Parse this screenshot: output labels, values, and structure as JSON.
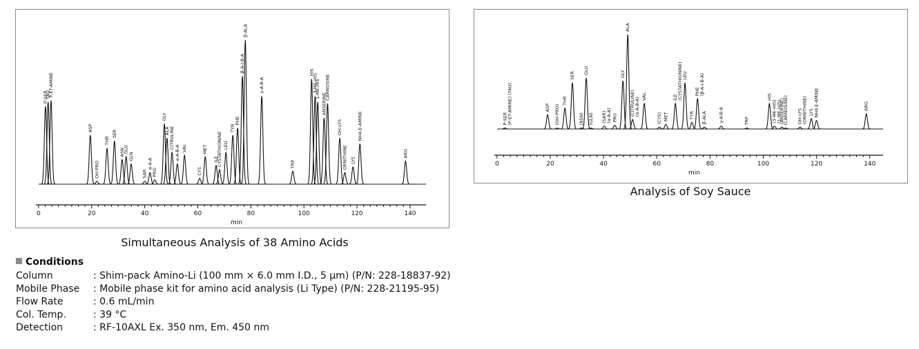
{
  "chart_data": [
    {
      "type": "chromatogram",
      "title": "Simultaneous Analysis of 38 Amino Acids",
      "x_label": "min",
      "color": "#111111",
      "xlim": [
        -1,
        146
      ],
      "xticks": [
        0,
        20,
        40,
        60,
        80,
        100,
        120,
        140
      ],
      "ylim": [
        0,
        100
      ],
      "peaks": [
        {
          "label": [
            "P-SER"
          ],
          "x": 2.6,
          "height": 54
        },
        {
          "label": [
            "TAU"
          ],
          "x": 3.6,
          "height": 57
        },
        {
          "label": [
            "P-ET-AMINE"
          ],
          "x": 4.7,
          "height": 58
        },
        {
          "label": [
            "ASP"
          ],
          "x": 19.5,
          "height": 34
        },
        {
          "label": [
            "OH-PRO"
          ],
          "x": 22,
          "height": 2
        },
        {
          "label": [
            "THR"
          ],
          "x": 25.8,
          "height": 25
        },
        {
          "label": [
            "SER"
          ],
          "x": 28.6,
          "height": 30
        },
        {
          "label": [
            "ASN"
          ],
          "x": 31.5,
          "height": 17
        },
        {
          "label": [
            "GLU"
          ],
          "x": 33,
          "height": 19
        },
        {
          "label": [
            "GLN"
          ],
          "x": 34.9,
          "height": 14
        },
        {
          "label": [
            "SAR"
          ],
          "x": 40,
          "height": 2
        },
        {
          "label": [
            "α-A-A"
          ],
          "x": 42,
          "height": 8
        },
        {
          "label": [
            "PRO"
          ],
          "x": 43.8,
          "height": 3
        },
        {
          "label": [
            "GLY"
          ],
          "x": 47.4,
          "height": 42
        },
        {
          "label": [
            "ALA"
          ],
          "x": 48.4,
          "height": 32
        },
        {
          "label": [
            "CITRULINE"
          ],
          "x": 50.3,
          "height": 22
        },
        {
          "label": [
            "α-A-B-A"
          ],
          "x": 52.3,
          "height": 14
        },
        {
          "label": [
            "VAL"
          ],
          "x": 55,
          "height": 20
        },
        {
          "label": [
            "CYS"
          ],
          "x": 60.7,
          "height": 4
        },
        {
          "label": [
            "MET"
          ],
          "x": 62.8,
          "height": 19
        },
        {
          "label": [
            "ILE"
          ],
          "x": 66.9,
          "height": 13
        },
        {
          "label": [
            "CYSTATHIONINE"
          ],
          "x": 68.2,
          "height": 10
        },
        {
          "label": [
            "LEU"
          ],
          "x": 70.6,
          "height": 22
        },
        {
          "label": [
            "TYR"
          ],
          "x": 73.2,
          "height": 34
        },
        {
          "label": [
            "PHE"
          ],
          "x": 75,
          "height": 39
        },
        {
          "label": [
            "β-A-I-B-A"
          ],
          "x": 76.8,
          "height": 75
        },
        {
          "label": [
            "β-ALA"
          ],
          "x": 77.9,
          "height": 100
        },
        {
          "label": [
            "γ-A-B-A"
          ],
          "x": 84.1,
          "height": 61
        },
        {
          "label": [
            "TRP"
          ],
          "x": 95.8,
          "height": 9
        },
        {
          "label": [
            "HIS"
          ],
          "x": 102.9,
          "height": 73
        },
        {
          "label": [
            "3-ME-HIS"
          ],
          "x": 104.2,
          "height": 61
        },
        {
          "label": [
            "1-ME-HIS"
          ],
          "x": 105.2,
          "height": 57
        },
        {
          "label": [
            "ANSERINE"
          ],
          "x": 107.6,
          "height": 46
        },
        {
          "label": [
            "CARNOSINE"
          ],
          "x": 108.9,
          "height": 56
        },
        {
          "label": [
            "OH-LYS"
          ],
          "x": 113.5,
          "height": 32
        },
        {
          "label": [
            "ORNITHINE"
          ],
          "x": 115.4,
          "height": 8
        },
        {
          "label": [
            "LYS"
          ],
          "x": 118.5,
          "height": 12
        },
        {
          "label": [
            "NH4,E-AMINE"
          ],
          "x": 121.1,
          "height": 28
        },
        {
          "label": [
            "ARG"
          ],
          "x": 138.3,
          "height": 16
        }
      ]
    },
    {
      "type": "chromatogram",
      "title": "Analysis of Soy Sauce",
      "x_label": "min",
      "color": "#111111",
      "xlim": [
        -1,
        145
      ],
      "xticks": [
        0,
        20,
        40,
        60,
        80,
        100,
        120,
        140
      ],
      "ylim": [
        0,
        100
      ],
      "peaks": [
        {
          "label": [
            "P-SER",
            "(P-ET-AMINE) (TAU)"
          ],
          "x": 3,
          "height": 1
        },
        {
          "label": [
            "ASP"
          ],
          "x": 19,
          "height": 15
        },
        {
          "label": [
            "(OH-PRO)"
          ],
          "x": 22.6,
          "height": 1
        },
        {
          "label": [
            "THR"
          ],
          "x": 25.5,
          "height": 22
        },
        {
          "label": [
            "SER"
          ],
          "x": 28.3,
          "height": 49
        },
        {
          "label": [
            "(ASN)"
          ],
          "x": 31.7,
          "height": 1
        },
        {
          "label": [
            "GLU"
          ],
          "x": 33.5,
          "height": 54
        },
        {
          "label": [
            "(GLN)"
          ],
          "x": 35.3,
          "height": 1
        },
        {
          "label": [
            "(SAR)",
            "(α-A-A)"
          ],
          "x": 40.3,
          "height": 3
        },
        {
          "label": [
            "PRO"
          ],
          "x": 44.2,
          "height": 4
        },
        {
          "label": [
            "GLY"
          ],
          "x": 47.3,
          "height": 51
        },
        {
          "label": [
            "ALA"
          ],
          "x": 49.1,
          "height": 100
        },
        {
          "label": [
            "(CITRULINE)",
            "(α-A-B-A)"
          ],
          "x": 50.9,
          "height": 10
        },
        {
          "label": [
            "VAL"
          ],
          "x": 55.3,
          "height": 27
        },
        {
          "label": [
            "(CYS)"
          ],
          "x": 61,
          "height": 2
        },
        {
          "label": [
            "MET"
          ],
          "x": 63.4,
          "height": 5
        },
        {
          "label": [
            "ILE",
            "(CYSTATHIONINE)"
          ],
          "x": 67,
          "height": 27
        },
        {
          "label": [
            "LEU"
          ],
          "x": 70.6,
          "height": 49
        },
        {
          "label": [
            "TYR"
          ],
          "x": 73.2,
          "height": 7
        },
        {
          "label": [
            "PHE",
            "(β-A-I-B-A)"
          ],
          "x": 75.3,
          "height": 32
        },
        {
          "label": [
            "β-ALA"
          ],
          "x": 77.9,
          "height": 2
        },
        {
          "label": [
            "γ-A-B-A"
          ],
          "x": 84.2,
          "height": 3
        },
        {
          "label": [
            "TRP"
          ],
          "x": 93.8,
          "height": 1
        },
        {
          "label": [
            "HIS"
          ],
          "x": 102.3,
          "height": 27
        },
        {
          "label": [
            "(3-ME-HIS)",
            "(1-ME-HIS)"
          ],
          "x": 104.2,
          "height": 3
        },
        {
          "label": [
            "(ANSERINE)"
          ],
          "x": 107,
          "height": 2
        },
        {
          "label": [
            "(CARNOSINE)"
          ],
          "x": 108.4,
          "height": 1
        },
        {
          "label": [
            "OH-LYS",
            "(ORNITHINE)"
          ],
          "x": 113.8,
          "height": 2
        },
        {
          "label": [
            "LYS"
          ],
          "x": 118,
          "height": 11
        },
        {
          "label": [
            "NH4,E-AMINE"
          ],
          "x": 120,
          "height": 9
        },
        {
          "label": [
            "ARG"
          ],
          "x": 138.7,
          "height": 16
        }
      ]
    }
  ],
  "conditions": {
    "heading": "Conditions",
    "rows": [
      [
        "Column",
        ": Shim-pack Amino-Li (100 mm × 6.0 mm I.D., 5 μm) (P/N: 228-18837-92)"
      ],
      [
        "Mobile Phase",
        ": Mobile phase kit for amino acid analysis (Li Type) (P/N: 228-21195-95)"
      ],
      [
        "Flow Rate",
        ": 0.6 mL/min"
      ],
      [
        "Col. Temp.",
        ": 39 °C"
      ],
      [
        "Detection",
        ": RF-10AXL Ex. 350 nm, Em. 450 nm"
      ]
    ]
  }
}
